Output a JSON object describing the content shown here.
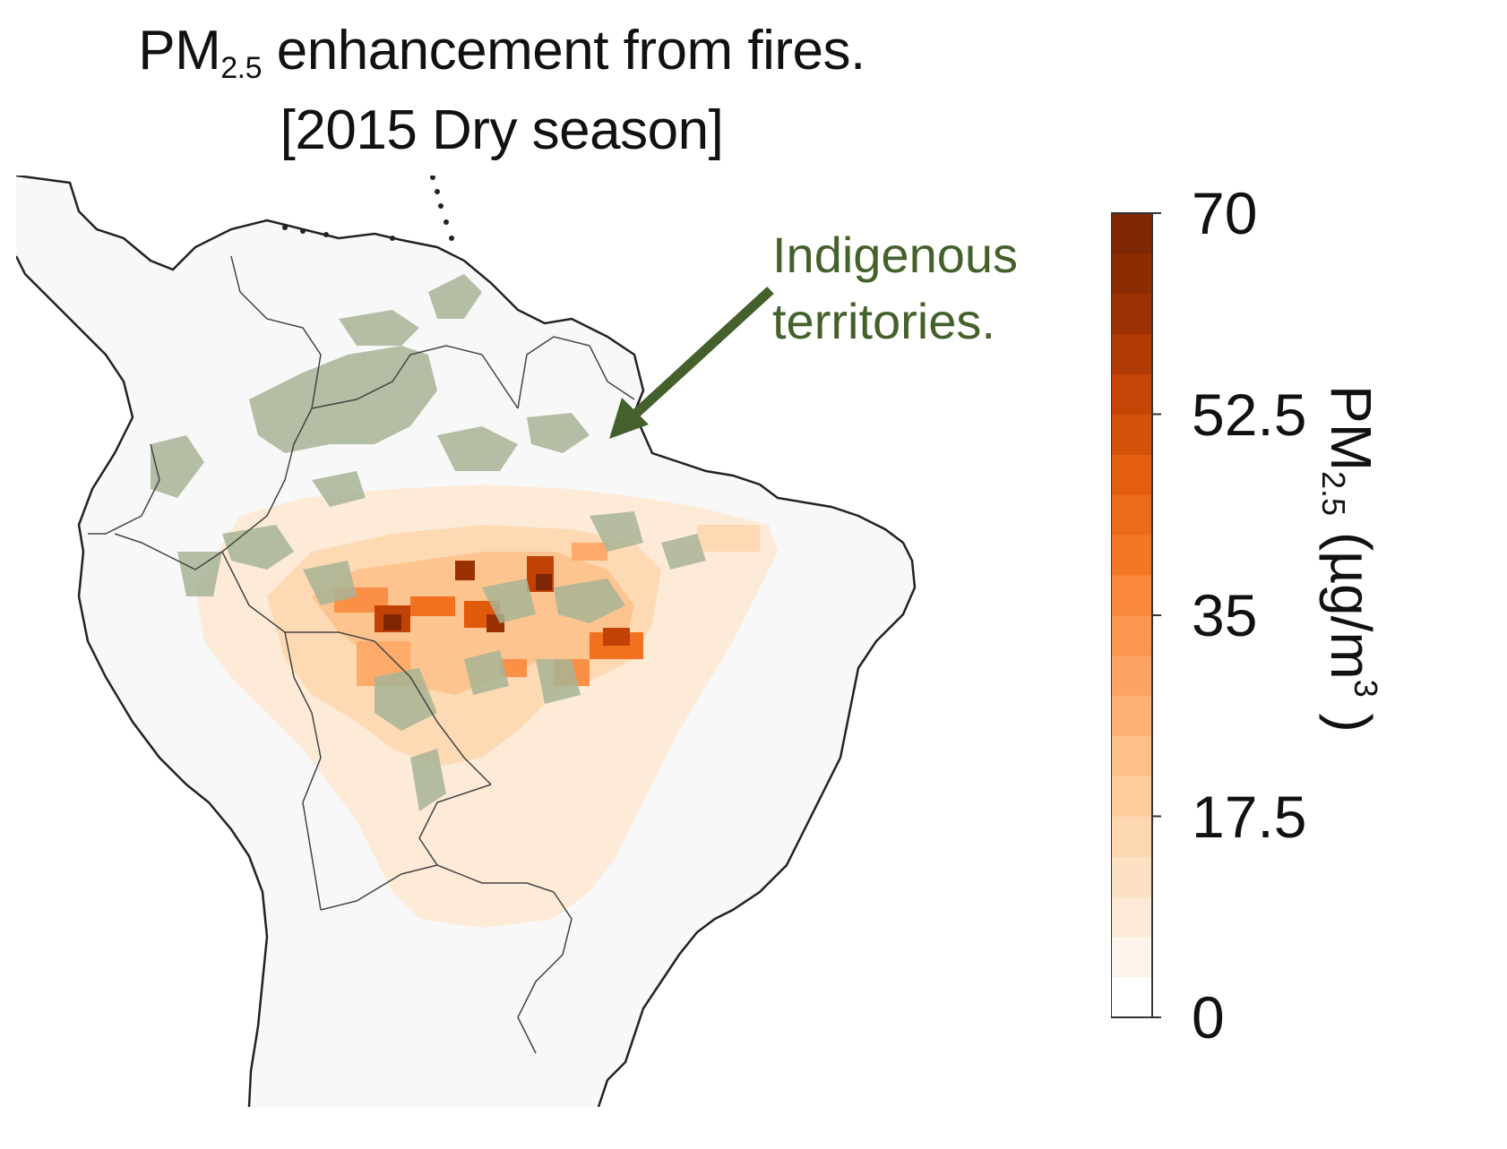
{
  "title": {
    "line1_pre": "PM",
    "line1_sub": "2.5",
    "line1_post": " enhancement from fires.",
    "line2": "[2015 Dry season]"
  },
  "annotation": {
    "line1": "Indigenous",
    "line2": "territories.",
    "color": "#44612c"
  },
  "colorbar": {
    "label_pre": "PM",
    "label_sub": "2.5",
    "label_mid": " (µg/m",
    "label_sup": "3",
    "label_post": " )",
    "ticks": [
      "70",
      "52.5",
      "35",
      "17.5",
      "0"
    ],
    "tick_values": [
      70,
      52.5,
      35,
      17.5,
      0
    ],
    "min": 0,
    "max": 70,
    "steps": 20,
    "colors": [
      "#ffffff",
      "#fdebd8",
      "#fdd9b4",
      "#fdc48f",
      "#fdaa6a",
      "#fc8f46",
      "#f2711f",
      "#e05a0c",
      "#c24205",
      "#9a3103",
      "#7f2704"
    ]
  },
  "map": {
    "land_color": "#f8f8f8",
    "border_color": "#222222",
    "indigenous_color": "#a8b496"
  }
}
